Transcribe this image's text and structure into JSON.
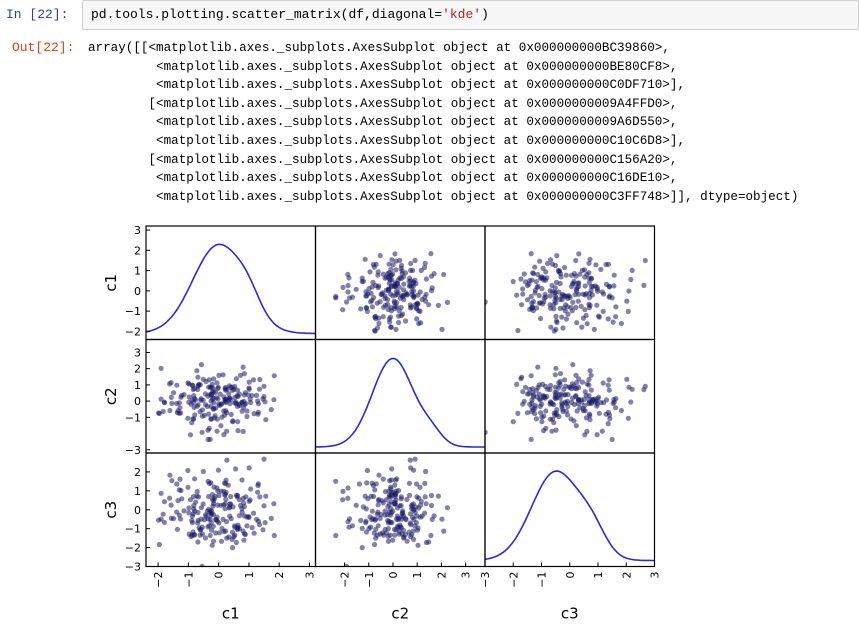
{
  "cell": {
    "in_prompt": "In  [22]:",
    "out_prompt": "Out[22]:",
    "code": {
      "prefix": "pd.tools.plotting.scatter_matrix(df,diagonal=",
      "string": "'kde'",
      "suffix": ")"
    },
    "output_lines": [
      "array([[<matplotlib.axes._subplots.AxesSubplot object at 0x000000000BC39860>,",
      "         <matplotlib.axes._subplots.AxesSubplot object at 0x000000000BE80CF8>,",
      "         <matplotlib.axes._subplots.AxesSubplot object at 0x000000000C0DF710>],",
      "        [<matplotlib.axes._subplots.AxesSubplot object at 0x0000000009A4FFD0>,",
      "         <matplotlib.axes._subplots.AxesSubplot object at 0x0000000009A6D550>,",
      "         <matplotlib.axes._subplots.AxesSubplot object at 0x000000000C10C6D8>],",
      "        [<matplotlib.axes._subplots.AxesSubplot object at 0x000000000C156A20>,",
      "         <matplotlib.axes._subplots.AxesSubplot object at 0x000000000C16DE10>,",
      "         <matplotlib.axes._subplots.AxesSubplot object at 0x000000000C3FF748>]], dtype=object)"
    ]
  },
  "colors": {
    "kde_line": "#2a2adb",
    "scatter_point": "#1a1a66",
    "in_prompt": "#303f9f",
    "out_prompt": "#d84315"
  },
  "chart_data": {
    "type": "scatter",
    "title": "scatter_matrix (diagonal='kde')",
    "variables": [
      "c1",
      "c2",
      "c3"
    ],
    "xlabels": [
      "c1",
      "c2",
      "c3"
    ],
    "ylabels": [
      "c1",
      "c2",
      "c3"
    ],
    "x_ticks": {
      "c1": [
        "-2",
        "-1",
        "0",
        "1",
        "2",
        "3"
      ],
      "c2": [
        "-2",
        "-1",
        "0",
        "1",
        "2",
        "3"
      ],
      "c3": [
        "-3",
        "-2",
        "-1",
        "0",
        "1",
        "2",
        "3"
      ]
    },
    "y_ticks": {
      "c1": [
        "3",
        "2",
        "1",
        "0",
        "-1",
        "-2"
      ],
      "c2": [
        "3",
        "2",
        "1",
        "0",
        "-1",
        "-3"
      ],
      "c3": [
        "2",
        "1",
        "0",
        "-1",
        "-2",
        "-3"
      ]
    },
    "diagonal": "kde",
    "kde_peaks": {
      "c1": 0.0,
      "c2": 0.0,
      "c3": -0.5
    },
    "approx_n_points": 200,
    "grid": false
  }
}
